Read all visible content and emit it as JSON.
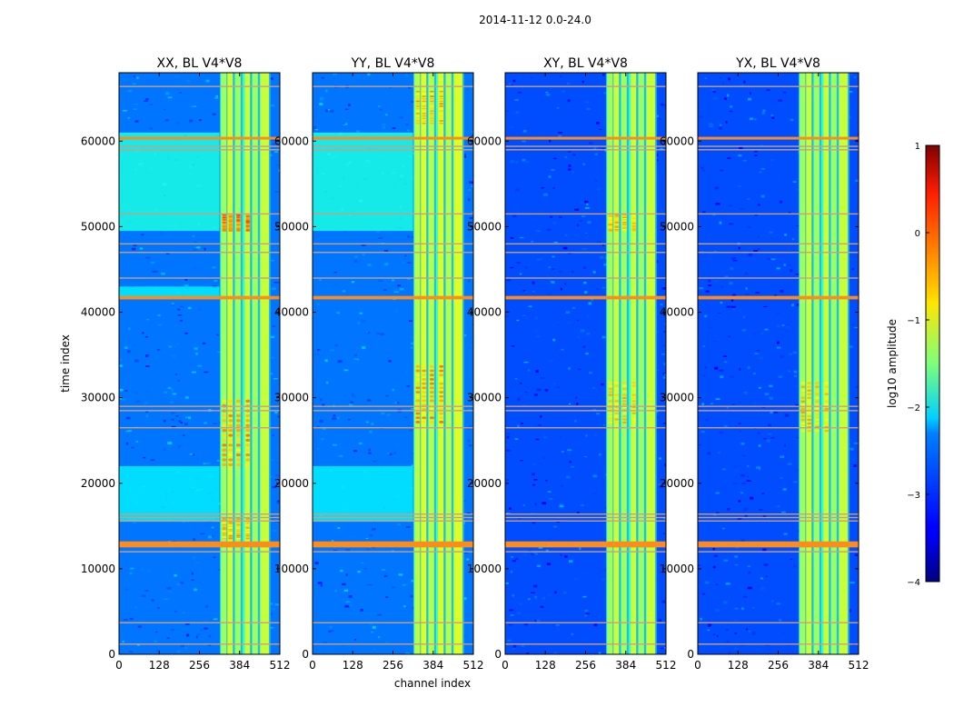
{
  "figure": {
    "suptitle": "2014-11-12 0.0-24.0",
    "xlabel": "channel index",
    "ylabel": "time index",
    "colorbar_label": "log10 amplitude"
  },
  "chart_data": [
    {
      "type": "heatmap",
      "title": "XX, BL V4*V8",
      "xlim": [
        0,
        512
      ],
      "ylim": [
        0,
        68000
      ],
      "xticks": [
        0,
        128,
        256,
        384,
        512
      ],
      "yticks": [
        0,
        10000,
        20000,
        30000,
        40000,
        50000,
        60000
      ],
      "band_channels": [
        {
          "from": 325,
          "to": 345
        },
        {
          "from": 345,
          "to": 365
        },
        {
          "from": 370,
          "to": 390
        },
        {
          "from": 400,
          "to": 420
        },
        {
          "from": 425,
          "to": 445
        },
        {
          "from": 450,
          "to": 480
        }
      ],
      "background_level": -2.8,
      "band_level": -1.3,
      "enhanced_regions": [
        {
          "from": 49500,
          "to": 61000,
          "level": -2.0
        },
        {
          "from": 15500,
          "to": 22000,
          "level": -2.2
        },
        {
          "from": 41500,
          "to": 43000,
          "level": -2.2
        }
      ],
      "hot_regions": [
        {
          "from": 22000,
          "to": 30000,
          "level": -0.2
        },
        {
          "from": 49500,
          "to": 51500,
          "level": 0.1
        },
        {
          "from": 13500,
          "to": 16000,
          "level": -0.3
        }
      ]
    },
    {
      "type": "heatmap",
      "title": "YY, BL V4*V8",
      "xlim": [
        0,
        512
      ],
      "ylim": [
        0,
        68000
      ],
      "xticks": [
        0,
        128,
        256,
        384,
        512
      ],
      "yticks": [
        0,
        10000,
        20000,
        30000,
        40000,
        50000,
        60000
      ],
      "band_channels": [
        {
          "from": 325,
          "to": 345
        },
        {
          "from": 345,
          "to": 365
        },
        {
          "from": 370,
          "to": 390
        },
        {
          "from": 400,
          "to": 420
        },
        {
          "from": 425,
          "to": 445
        },
        {
          "from": 450,
          "to": 480
        }
      ],
      "background_level": -2.8,
      "band_level": -1.2,
      "enhanced_regions": [
        {
          "from": 49500,
          "to": 61000,
          "level": -2.0
        },
        {
          "from": 15500,
          "to": 22000,
          "level": -2.2
        }
      ],
      "hot_regions": [
        {
          "from": 27000,
          "to": 34000,
          "level": -0.2
        },
        {
          "from": 62000,
          "to": 66000,
          "level": -0.2
        }
      ]
    },
    {
      "type": "heatmap",
      "title": "XY, BL V4*V8",
      "xlim": [
        0,
        512
      ],
      "ylim": [
        0,
        68000
      ],
      "xticks": [
        0,
        128,
        256,
        384,
        512
      ],
      "yticks": [
        0,
        10000,
        20000,
        30000,
        40000,
        50000,
        60000
      ],
      "band_channels": [
        {
          "from": 325,
          "to": 345
        },
        {
          "from": 345,
          "to": 365
        },
        {
          "from": 370,
          "to": 390
        },
        {
          "from": 400,
          "to": 420
        },
        {
          "from": 425,
          "to": 445
        },
        {
          "from": 450,
          "to": 480
        }
      ],
      "background_level": -3.0,
      "band_level": -1.3,
      "enhanced_regions": [],
      "hot_regions": [
        {
          "from": 27000,
          "to": 32000,
          "level": -0.4
        },
        {
          "from": 49500,
          "to": 51500,
          "level": -0.3
        }
      ]
    },
    {
      "type": "heatmap",
      "title": "YX, BL V4*V8",
      "xlim": [
        0,
        512
      ],
      "ylim": [
        0,
        68000
      ],
      "xticks": [
        0,
        128,
        256,
        384,
        512
      ],
      "yticks": [
        0,
        10000,
        20000,
        30000,
        40000,
        50000,
        60000
      ],
      "band_channels": [
        {
          "from": 325,
          "to": 345
        },
        {
          "from": 345,
          "to": 365
        },
        {
          "from": 370,
          "to": 390
        },
        {
          "from": 400,
          "to": 420
        },
        {
          "from": 425,
          "to": 445
        },
        {
          "from": 450,
          "to": 480
        }
      ],
      "background_level": -3.0,
      "band_level": -1.3,
      "enhanced_regions": [],
      "hot_regions": [
        {
          "from": 26000,
          "to": 32000,
          "level": -0.4
        }
      ]
    }
  ],
  "flag_rows": {
    "thick": [
      {
        "from": 12500,
        "to": 13200
      },
      {
        "from": 41500,
        "to": 41900
      },
      {
        "from": 60200,
        "to": 60500
      }
    ],
    "thin": [
      1200,
      3700,
      12000,
      15600,
      16000,
      16400,
      26500,
      28500,
      29000,
      44000,
      47000,
      48000,
      51500,
      59000,
      59400,
      66400
    ]
  },
  "colorbar": {
    "range": [
      -4,
      1
    ],
    "ticks": [
      1,
      0,
      -1,
      -2,
      -3,
      -4
    ],
    "tick_labels": [
      "1",
      "0",
      "−1",
      "−2",
      "−3",
      "−4"
    ],
    "colormap": "jet"
  },
  "colors": {
    "flag": "#ff8c1a",
    "flag_thin": "#c8a080"
  }
}
